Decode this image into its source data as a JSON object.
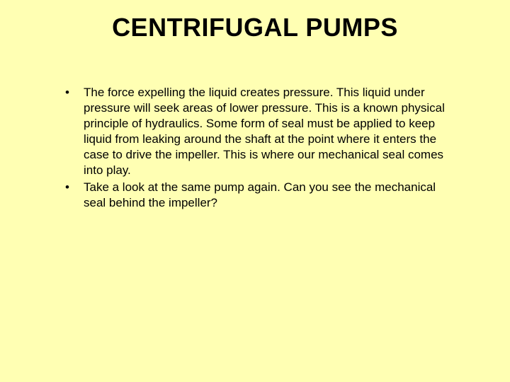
{
  "slide": {
    "background_color": "#ffffb3",
    "title": "CENTRIFUGAL PUMPS",
    "title_fontsize": 36,
    "title_color": "#000000",
    "body_fontsize": 17,
    "body_color": "#000000",
    "bullet_char": "•",
    "bullets": [
      "The force expelling the liquid creates pressure. This liquid under pressure will seek areas of lower pressure. This is a known physical principle of hydraulics. Some form of seal must be applied to keep liquid from leaking around the shaft at the point where it enters the case to drive the impeller. This is where our mechanical seal comes into play.",
      "Take a look at the same pump again. Can you see the mechanical seal behind the impeller?"
    ]
  }
}
